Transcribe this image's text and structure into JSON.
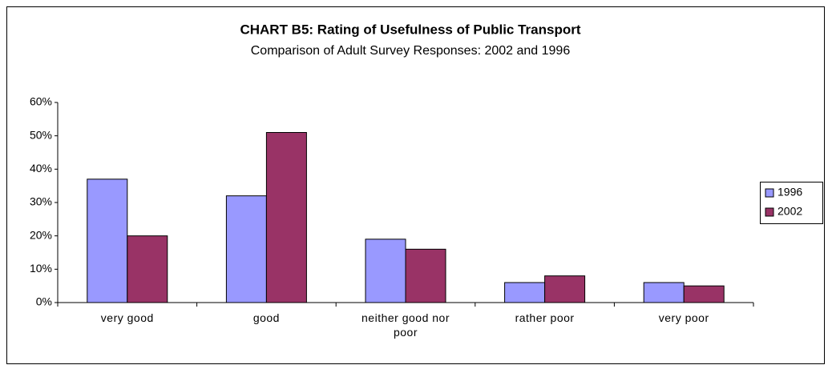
{
  "chart_data": {
    "type": "bar",
    "title": "CHART B5: Rating of Usefulness of Public Transport",
    "subtitle": "Comparison of Adult Survey Responses: 2002 and 1996",
    "categories": [
      "very good",
      "good",
      "neither good nor poor",
      "rather poor",
      "very poor"
    ],
    "series": [
      {
        "name": "1996",
        "color": "#9999ff",
        "values": [
          37,
          32,
          19,
          6,
          6
        ]
      },
      {
        "name": "2002",
        "color": "#993366",
        "values": [
          20,
          51,
          16,
          8,
          5
        ]
      }
    ],
    "ylim": [
      0,
      60
    ],
    "yticks": [
      {
        "value": 0,
        "label": "0%"
      },
      {
        "value": 10,
        "label": "10%"
      },
      {
        "value": 20,
        "label": "20%"
      },
      {
        "value": 30,
        "label": "30%"
      },
      {
        "value": 40,
        "label": "40%"
      },
      {
        "value": 50,
        "label": "50%"
      },
      {
        "value": 60,
        "label": "60%"
      }
    ],
    "grid": false,
    "legend": "right"
  }
}
